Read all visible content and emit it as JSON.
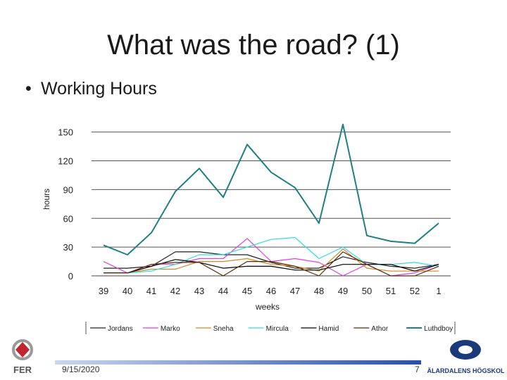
{
  "slide": {
    "title": "What was the road? (1)",
    "bullet": "Working Hours",
    "date": "9/15/2020",
    "page_number": "7",
    "logo_left_text": "FER",
    "logo_right_text": "MÄLARDALENS HÖGSKOLA"
  },
  "chart_data": {
    "type": "line",
    "title": "",
    "xlabel": "weeks",
    "ylabel": "hours",
    "categories": [
      "39",
      "40",
      "41",
      "42",
      "43",
      "44",
      "45",
      "46",
      "47",
      "48",
      "49",
      "50",
      "51",
      "52",
      "1"
    ],
    "yticks": [
      0,
      30,
      60,
      90,
      120,
      150
    ],
    "ylim": [
      0,
      160
    ],
    "grid": true,
    "legend_position": "bottom",
    "series": [
      {
        "name": "Jordans",
        "color": "#222222",
        "values": [
          8,
          8,
          10,
          25,
          25,
          22,
          22,
          14,
          8,
          8,
          20,
          14,
          10,
          8,
          12
        ]
      },
      {
        "name": "Marko",
        "color": "#e040e0",
        "values": [
          15,
          3,
          12,
          12,
          18,
          18,
          39,
          15,
          18,
          14,
          0,
          12,
          0,
          3,
          12
        ]
      },
      {
        "name": "Sneha",
        "color": "#d4882c",
        "values": [
          3,
          3,
          7,
          7,
          15,
          15,
          18,
          12,
          10,
          5,
          28,
          8,
          5,
          5,
          5
        ]
      },
      {
        "name": "Mircula",
        "color": "#33dddd",
        "values": [
          3,
          3,
          5,
          12,
          22,
          22,
          30,
          38,
          40,
          18,
          30,
          12,
          12,
          14,
          10
        ]
      },
      {
        "name": "Hamid",
        "color": "#000000",
        "values": [
          3,
          3,
          10,
          17,
          14,
          8,
          10,
          10,
          6,
          6,
          12,
          12,
          12,
          5,
          12
        ]
      },
      {
        "name": "Athor",
        "color": "#5a2a00",
        "values": [
          3,
          3,
          12,
          14,
          14,
          0,
          15,
          15,
          10,
          0,
          25,
          12,
          0,
          0,
          10
        ]
      },
      {
        "name": "Luthdboy",
        "color": "#1e7f85",
        "values": [
          32,
          22,
          45,
          88,
          112,
          82,
          137,
          108,
          92,
          55,
          158,
          42,
          36,
          34,
          55
        ]
      }
    ]
  }
}
